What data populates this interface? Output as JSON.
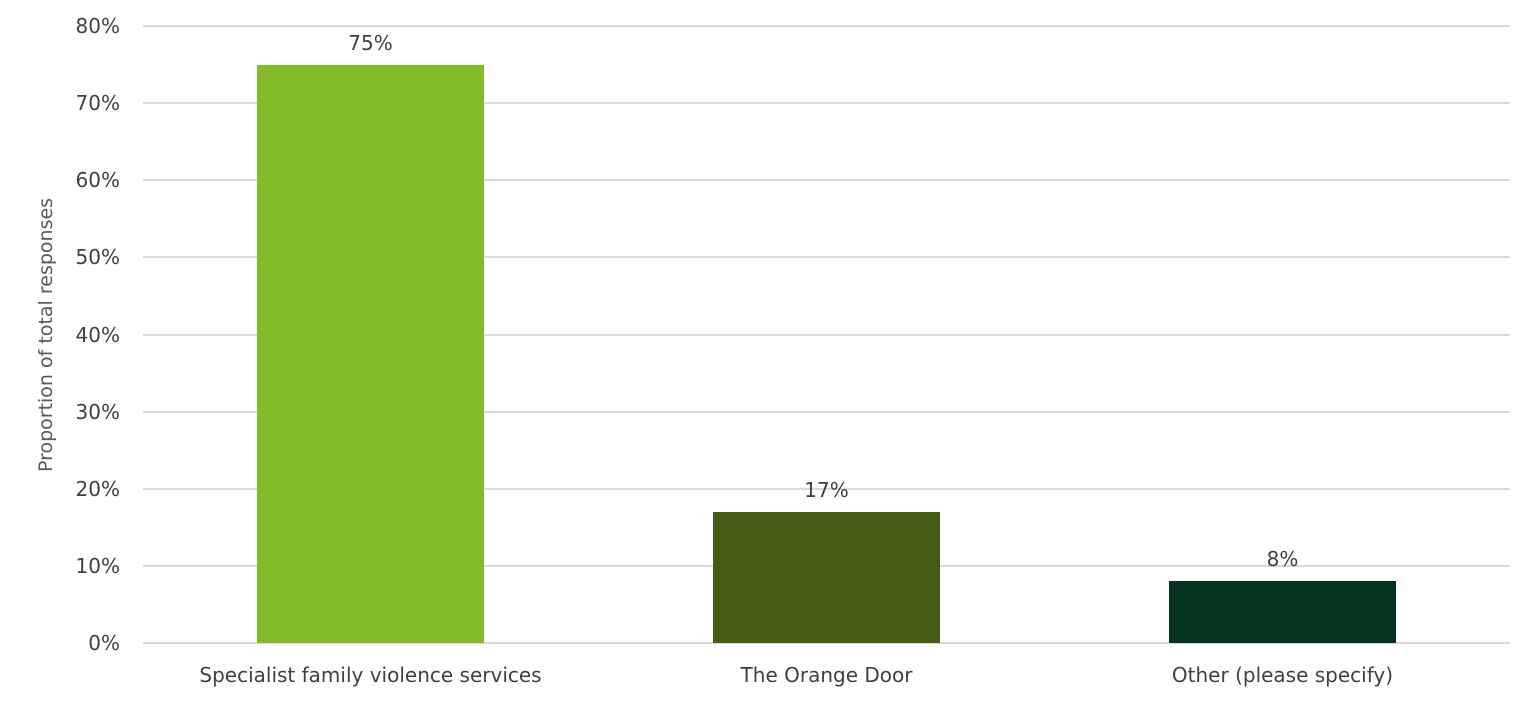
{
  "chart_data": {
    "type": "bar",
    "title": "",
    "xlabel": "",
    "ylabel": "Proportion of total responses",
    "categories": [
      "Specialist family violence services",
      "The Orange Door",
      "Other (please specify)"
    ],
    "values": [
      75,
      17,
      8
    ],
    "value_labels": [
      "75%",
      "17%",
      "8%"
    ],
    "colors": [
      "#84bb29",
      "#445c16",
      "#04341f"
    ],
    "ylim": [
      0,
      80
    ],
    "yticks": [
      "0%",
      "10%",
      "20%",
      "30%",
      "40%",
      "50%",
      "60%",
      "70%",
      "80%"
    ],
    "grid": true,
    "legend": "none"
  }
}
